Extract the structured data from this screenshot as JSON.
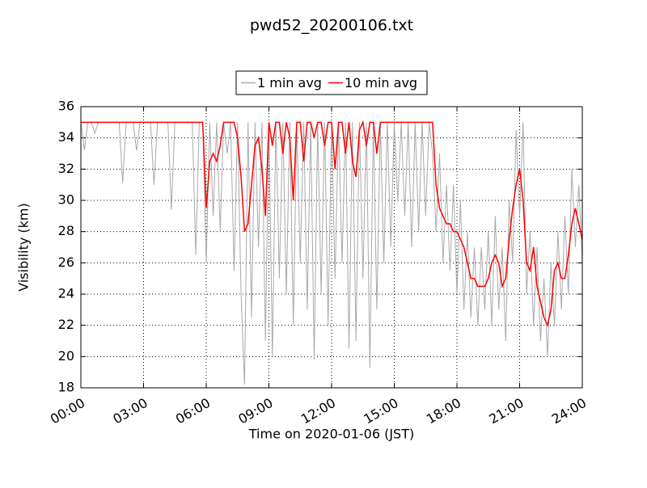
{
  "chart_data": {
    "type": "line",
    "title": "pwd52_20200106.txt",
    "xlabel": "Time on 2020-01-06 (JST)",
    "ylabel": "Visibility (km)",
    "x": [
      0,
      10,
      20,
      30,
      40,
      50,
      60,
      70,
      80,
      90,
      100,
      110,
      120,
      130,
      140,
      150,
      160,
      170,
      180,
      190,
      200,
      210,
      220,
      230,
      240,
      250,
      260,
      270,
      280,
      290,
      300,
      310,
      320,
      330,
      340,
      350,
      360,
      370,
      380,
      390,
      400,
      410,
      420,
      430,
      440,
      450,
      460,
      470,
      480,
      490,
      500,
      510,
      520,
      530,
      540,
      550,
      560,
      570,
      580,
      590,
      600,
      610,
      620,
      630,
      640,
      650,
      660,
      670,
      680,
      690,
      700,
      710,
      720,
      730,
      740,
      750,
      760,
      770,
      780,
      790,
      800,
      810,
      820,
      830,
      840,
      850,
      860,
      870,
      880,
      890,
      900,
      910,
      920,
      930,
      940,
      950,
      960,
      970,
      980,
      990,
      1000,
      1010,
      1020,
      1030,
      1040,
      1050,
      1060,
      1070,
      1080,
      1090,
      1100,
      1110,
      1120,
      1130,
      1140,
      1150,
      1160,
      1170,
      1180,
      1190,
      1200,
      1210,
      1220,
      1230,
      1240,
      1250,
      1260,
      1270,
      1280,
      1290,
      1300,
      1310,
      1320,
      1330,
      1340,
      1350,
      1360,
      1370,
      1380,
      1390,
      1400,
      1410,
      1420,
      1430,
      1440
    ],
    "series": [
      {
        "name": "1 min avg",
        "color": "#a9a9a9",
        "values": [
          35,
          33.2,
          35,
          35,
          34.3,
          35,
          35,
          35,
          35,
          35,
          35,
          35,
          31.1,
          35,
          35,
          35,
          33.2,
          35,
          35,
          35,
          35,
          31,
          35,
          35,
          35,
          35,
          29.4,
          35,
          35,
          35,
          35,
          35,
          35,
          26.5,
          35,
          35,
          26,
          35,
          29,
          35,
          28,
          35,
          33,
          35,
          25.5,
          35,
          24,
          18.2,
          35,
          22.5,
          35,
          27,
          35,
          21,
          35,
          20,
          35,
          25,
          35,
          24,
          35,
          22,
          35,
          26,
          35,
          23,
          35,
          19.8,
          35,
          24,
          35,
          22,
          35,
          25,
          35,
          26,
          35,
          20.5,
          35,
          21,
          35,
          25,
          35,
          19.3,
          35,
          23,
          35,
          26,
          35,
          27,
          35,
          30,
          35,
          29,
          35,
          27,
          35,
          28,
          35,
          29,
          35,
          33,
          28,
          33,
          26,
          31,
          25.5,
          31,
          24,
          30,
          23,
          28,
          22.5,
          27,
          22,
          27,
          23,
          28,
          22,
          29,
          23,
          27,
          21,
          30,
          26,
          34.5,
          29,
          35,
          24,
          28,
          22,
          27,
          21,
          25,
          20,
          26,
          22,
          28,
          23,
          29,
          24,
          32,
          27,
          31,
          26
        ]
      },
      {
        "name": "10 min avg",
        "color": "#ff0000",
        "values": [
          35,
          35,
          35,
          35,
          35,
          35,
          35,
          35,
          35,
          35,
          35,
          35,
          35,
          35,
          35,
          35,
          35,
          35,
          35,
          35,
          35,
          35,
          35,
          35,
          35,
          35,
          35,
          35,
          35,
          35,
          35,
          35,
          35,
          35,
          35,
          35,
          29.5,
          32.5,
          33,
          32.5,
          33.5,
          35,
          35,
          35,
          35,
          34,
          31.5,
          28,
          28.5,
          31,
          33.5,
          34,
          32,
          29,
          35,
          33.5,
          35,
          35,
          33,
          35,
          34,
          30,
          35,
          35,
          32.5,
          35,
          35,
          34,
          35,
          35,
          33.5,
          35,
          35,
          32,
          35,
          35,
          33,
          35,
          32.5,
          31.5,
          34.5,
          35,
          33.5,
          35,
          35,
          33,
          35,
          35,
          35,
          35,
          35,
          35,
          35,
          35,
          35,
          35,
          35,
          35,
          35,
          35,
          35,
          35,
          31,
          29.5,
          29,
          28.5,
          28.5,
          28,
          28,
          27.5,
          27,
          26,
          25,
          25,
          24.5,
          24.5,
          24.5,
          25,
          26,
          26.5,
          26,
          24.5,
          25,
          27.5,
          29.5,
          31,
          32,
          30,
          26,
          25.5,
          27,
          24.5,
          23.5,
          22.5,
          22,
          23,
          25.5,
          26,
          25,
          25,
          26.5,
          28.5,
          29.5,
          28.5,
          27.5
        ]
      }
    ],
    "xlim": [
      0,
      1440
    ],
    "xticks": [
      {
        "value": 0,
        "label": "00:00"
      },
      {
        "value": 180,
        "label": "03:00"
      },
      {
        "value": 360,
        "label": "06:00"
      },
      {
        "value": 540,
        "label": "09:00"
      },
      {
        "value": 720,
        "label": "12:00"
      },
      {
        "value": 900,
        "label": "15:00"
      },
      {
        "value": 1080,
        "label": "18:00"
      },
      {
        "value": 1260,
        "label": "21:00"
      },
      {
        "value": 1440,
        "label": "24:00"
      }
    ],
    "ylim": [
      18,
      36
    ],
    "yticks": [
      18,
      20,
      22,
      24,
      26,
      28,
      30,
      32,
      34,
      36
    ],
    "grid": true,
    "legend": "upper center"
  }
}
